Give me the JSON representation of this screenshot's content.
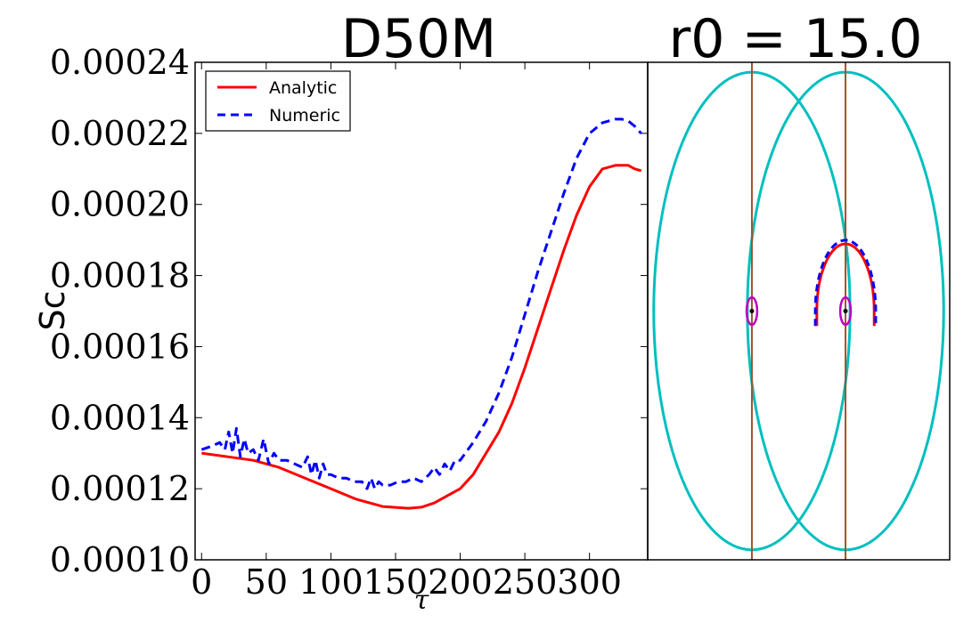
{
  "chart_data": [
    {
      "type": "line",
      "title": "D50M",
      "xlabel": "τ",
      "ylabel": "Sc",
      "xlim": [
        -5,
        345
      ],
      "ylim": [
        0.0001,
        0.00024
      ],
      "xticks": [
        0,
        50,
        100,
        150,
        200,
        250,
        300
      ],
      "xtick_labels": [
        "0",
        "50",
        "100",
        "150",
        "200",
        "250",
        "300"
      ],
      "yticks": [
        0.0001,
        0.00012,
        0.00014,
        0.00016,
        0.00018,
        0.0002,
        0.00022,
        0.00024
      ],
      "ytick_labels": [
        "0.00010",
        "0.00012",
        "0.00014",
        "0.00016",
        "0.00018",
        "0.00020",
        "0.00022",
        "0.00024"
      ],
      "legend_position": "top-left",
      "series": [
        {
          "name": "Analytic",
          "color": "#ff0000",
          "style": "solid",
          "x": [
            0,
            20,
            40,
            60,
            80,
            100,
            120,
            140,
            160,
            170,
            180,
            190,
            200,
            210,
            220,
            230,
            240,
            250,
            260,
            270,
            280,
            290,
            300,
            310,
            320,
            330,
            335,
            340
          ],
          "y": [
            0.00013,
            0.000129,
            0.000128,
            0.000126,
            0.000123,
            0.00012,
            0.000117,
            0.000115,
            0.0001145,
            0.0001148,
            0.000116,
            0.000118,
            0.00012,
            0.000124,
            0.00013,
            0.000136,
            0.000144,
            0.000154,
            0.000165,
            0.000176,
            0.000187,
            0.000197,
            0.000205,
            0.00021,
            0.000211,
            0.000211,
            0.00021,
            0.0002095
          ]
        },
        {
          "name": "Numeric",
          "color": "#0000ff",
          "style": "dashed",
          "x": [
            0,
            8,
            14,
            18,
            21,
            24,
            27,
            30,
            33,
            36,
            40,
            44,
            48,
            52,
            56,
            60,
            66,
            72,
            78,
            82,
            85,
            88,
            91,
            94,
            97,
            100,
            106,
            112,
            118,
            124,
            128,
            131,
            134,
            137,
            140,
            146,
            152,
            158,
            164,
            170,
            176,
            180,
            184,
            188,
            192,
            196,
            200,
            210,
            220,
            230,
            240,
            250,
            260,
            270,
            280,
            290,
            300,
            310,
            320,
            325,
            330,
            335,
            340
          ],
          "y": [
            0.000131,
            0.000132,
            0.000133,
            0.000131,
            0.000136,
            0.00013,
            0.000137,
            0.000129,
            0.000134,
            0.00013,
            0.000131,
            0.000128,
            0.000134,
            0.000127,
            0.00013,
            0.000128,
            0.000128,
            0.000127,
            0.000126,
            0.000129,
            0.000124,
            0.000128,
            0.000123,
            0.000127,
            0.000124,
            0.000124,
            0.000123,
            0.000123,
            0.000122,
            0.000122,
            0.00012,
            0.000123,
            0.00012,
            0.000122,
            0.000121,
            0.000121,
            0.000122,
            0.000122,
            0.000123,
            0.000122,
            0.000124,
            0.000126,
            0.000124,
            0.000127,
            0.000125,
            0.000128,
            0.000128,
            0.000133,
            0.000139,
            0.000147,
            0.000157,
            0.000169,
            0.000181,
            0.000192,
            0.000203,
            0.000213,
            0.00022,
            0.000223,
            0.000224,
            0.000224,
            0.0002235,
            0.000222,
            0.00022
          ]
        }
      ]
    },
    {
      "type": "diagram",
      "title": "r0 = 15.0",
      "xlim": [
        -10,
        10
      ],
      "ylim": [
        -10,
        10
      ],
      "outer_ellipses": {
        "color": "#00bfbf",
        "centers_x": [
          -3.1,
          3.1
        ],
        "semi_axis_x": 6.5,
        "semi_axis_y": 9.6
      },
      "vertical_lines": {
        "color": "#a0522d",
        "x": [
          -3.1,
          3.1
        ]
      },
      "inner_ellipses": {
        "color": "#bf00bf",
        "centers_x": [
          -3.1,
          3.1
        ],
        "semi_axis_x": 0.35,
        "semi_axis_y": 0.55
      },
      "points": {
        "color": "#000000",
        "x": [
          -3.1,
          3.1
        ],
        "y": [
          0,
          0
        ]
      },
      "arcs": [
        {
          "name": "Analytic",
          "color": "#ff0000",
          "style": "solid",
          "cx": 3.1,
          "cy": 0,
          "rx": 1.9,
          "ry": 2.7
        },
        {
          "name": "Numeric",
          "color": "#0000ff",
          "style": "dashed",
          "cx": 3.1,
          "cy": 0,
          "rx": 2.0,
          "ry": 2.85
        }
      ]
    }
  ]
}
